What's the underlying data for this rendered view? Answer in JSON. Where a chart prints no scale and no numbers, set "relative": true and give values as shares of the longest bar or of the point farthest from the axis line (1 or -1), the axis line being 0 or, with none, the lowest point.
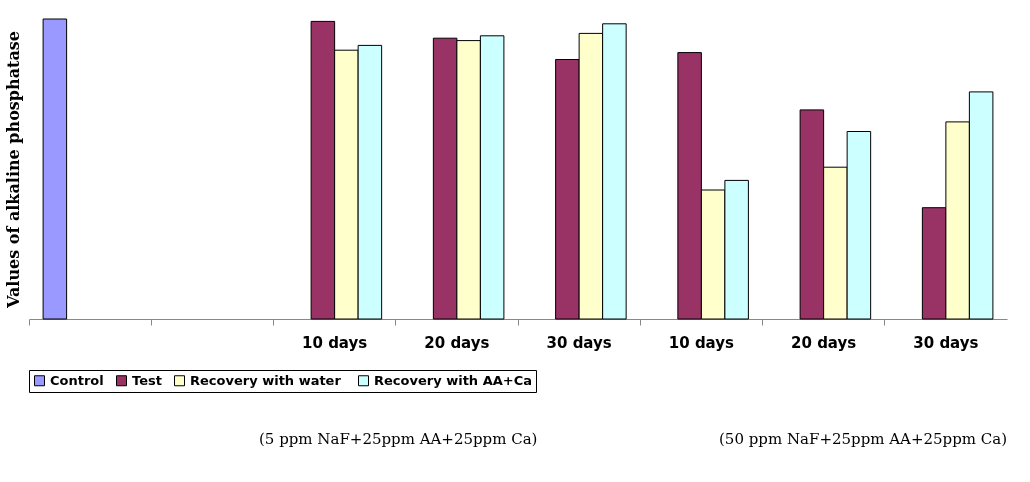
{
  "chart_data": {
    "type": "bar",
    "relative": true,
    "ylabel": "Values of alkaline phosphatase",
    "categories": [
      null,
      null,
      "10 days",
      "20 days",
      "30 days",
      "10 days",
      "20 days",
      "30 days"
    ],
    "series": [
      {
        "name": "Control",
        "color": "#9999ff",
        "values": [
          1,
          null,
          null,
          null,
          null,
          null,
          null,
          null
        ]
      },
      {
        "name": "Test",
        "color": "#993366",
        "values": [
          null,
          null,
          0.992,
          0.936,
          0.865,
          0.888,
          0.697,
          0.371
        ]
      },
      {
        "name": "Recovery  with water",
        "color": "#ffffcc",
        "values": [
          null,
          null,
          0.896,
          0.928,
          0.952,
          0.43,
          0.506,
          0.657
        ]
      },
      {
        "name": "Recovery with AA+Ca",
        "color": "#ccffff",
        "values": [
          null,
          null,
          0.912,
          0.944,
          0.984,
          0.462,
          0.625,
          0.757
        ]
      }
    ],
    "legend": "bottom",
    "grid": false,
    "annotations": [
      "(5 ppm NaF+25ppm AA+25ppm Ca)",
      "(50 ppm NaF+25ppm AA+25ppm Ca)"
    ]
  }
}
